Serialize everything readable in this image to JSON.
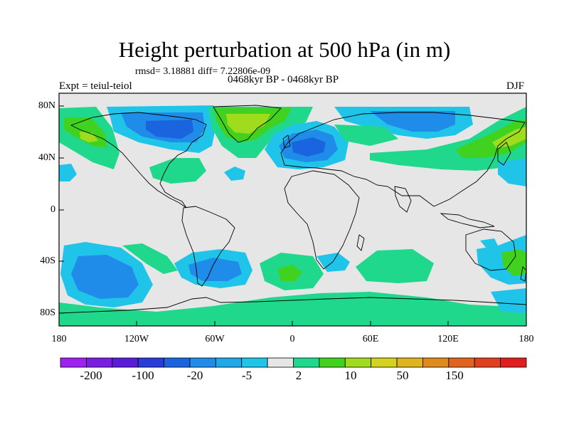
{
  "title": "Height perturbation at 500 hPa (in m)",
  "stats": "rmsd= 3.18881 diff= 7.22806e-09",
  "experiment": "Expt = teiul-teiol",
  "period": "0468kyr BP - 0468kyr BP",
  "season": "DJF",
  "lat_labels": [
    "80N",
    "40N",
    "0",
    "40S",
    "80S"
  ],
  "lon_labels": [
    "180",
    "120W",
    "60W",
    "0",
    "60E",
    "120E",
    "180"
  ],
  "colorbar": {
    "colors": [
      "#a020f0",
      "#7a1ee0",
      "#5a1cd8",
      "#2a3cd8",
      "#1a64e0",
      "#1e8ce8",
      "#20a8e8",
      "#20c4e8",
      "#e6e6e6",
      "#20d88c",
      "#40d21e",
      "#a0dc1e",
      "#d4d21e",
      "#e0b41e",
      "#e08a1e",
      "#e0641e",
      "#e0401e",
      "#e01e1e"
    ],
    "labels": [
      "-200",
      "-100",
      "-20",
      "-5",
      "2",
      "10",
      "50",
      "150"
    ]
  },
  "anomaly_colors": {
    "background": "#e6e6e6",
    "neg_light": "#20c4e8",
    "neg_mid": "#1e8ce8",
    "neg_strong": "#1a64e0",
    "pos_light": "#20d88c",
    "pos_mid": "#40d21e",
    "pos_strong": "#a0dc1e",
    "pos_stronger": "#d4d21e"
  }
}
